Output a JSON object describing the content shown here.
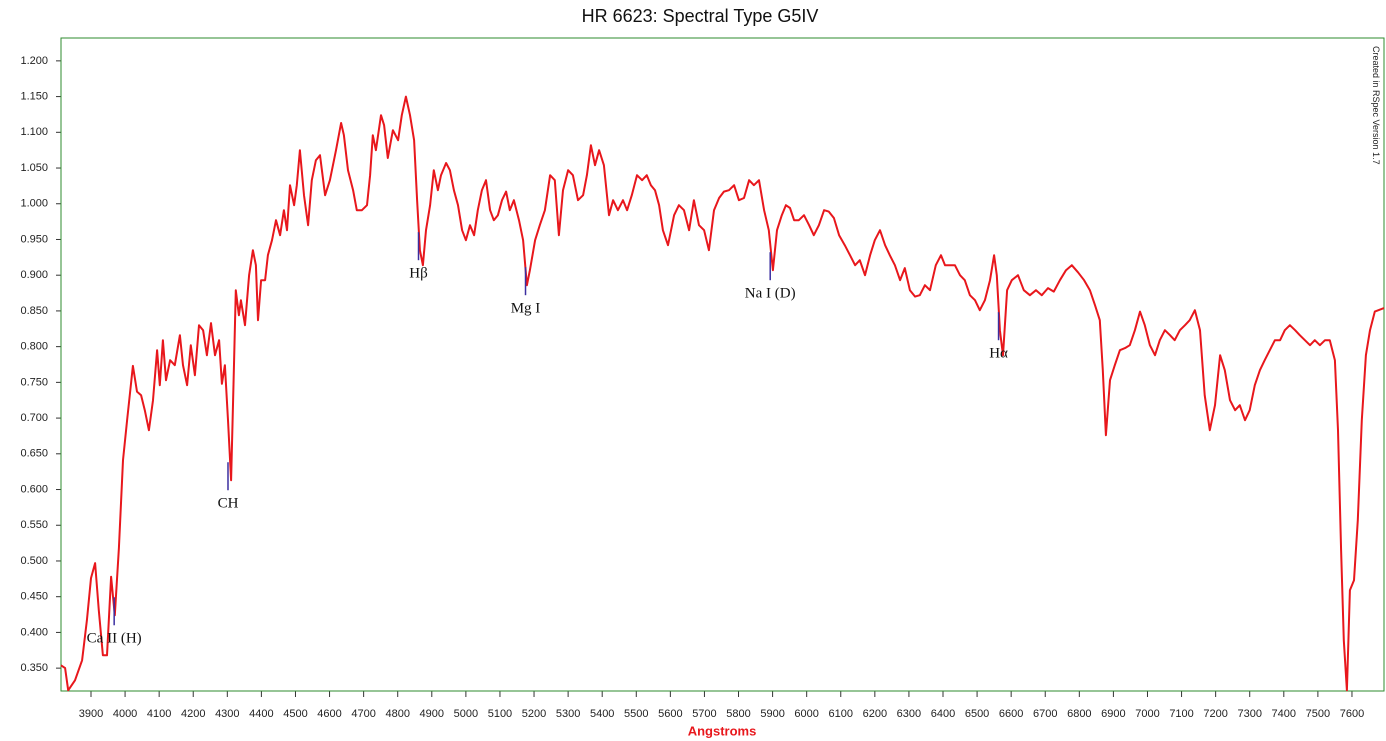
{
  "chart_data": {
    "type": "line",
    "title": "HR 6623: Spectral Type G5IV",
    "x_label": "Angstroms",
    "side_note": "Created in RSpec Version 1.7",
    "xlim": [
      3812,
      7694
    ],
    "ylim": [
      0.318,
      1.232
    ],
    "xticks": [
      3900,
      4000,
      4100,
      4200,
      4300,
      4400,
      4500,
      4600,
      4700,
      4800,
      4900,
      5000,
      5100,
      5200,
      5300,
      5400,
      5500,
      5600,
      5700,
      5800,
      5900,
      6000,
      6100,
      6200,
      6300,
      6400,
      6500,
      6600,
      6700,
      6800,
      6900,
      7000,
      7100,
      7200,
      7300,
      7400,
      7500,
      7600
    ],
    "yticks": [
      {
        "value": 0.35,
        "label": "0.350"
      },
      {
        "value": 0.4,
        "label": "0.400"
      },
      {
        "value": 0.45,
        "label": "0.450"
      },
      {
        "value": 0.5,
        "label": "0.500"
      },
      {
        "value": 0.55,
        "label": "0.550"
      },
      {
        "value": 0.6,
        "label": "0.600"
      },
      {
        "value": 0.65,
        "label": "0.650"
      },
      {
        "value": 0.7,
        "label": "0.700"
      },
      {
        "value": 0.75,
        "label": "0.750"
      },
      {
        "value": 0.8,
        "label": "0.800"
      },
      {
        "value": 0.85,
        "label": "0.850"
      },
      {
        "value": 0.9,
        "label": "0.900"
      },
      {
        "value": 0.95,
        "label": "0.950"
      },
      {
        "value": 1.0,
        "label": "1.000"
      },
      {
        "value": 1.05,
        "label": "1.050"
      },
      {
        "value": 1.1,
        "label": "1.100"
      },
      {
        "value": 1.15,
        "label": "1.150"
      },
      {
        "value": 1.2,
        "label": "1.200"
      }
    ],
    "frame_color": "#2e8b2e",
    "marker_color": "#3b2fa0",
    "annotations": [
      {
        "text": "Ca II (H)",
        "x": 3968
      },
      {
        "text": "CH",
        "x": 4302
      },
      {
        "text": "Hβ",
        "x": 4861
      },
      {
        "text": "Mg I",
        "x": 5175
      },
      {
        "text": "Na I (D)",
        "x": 5893
      },
      {
        "text": "Hα",
        "x": 6563
      }
    ],
    "x": [
      3812,
      3824,
      3833,
      3853,
      3874,
      3888,
      3900,
      3912,
      3923,
      3935,
      3947,
      3959,
      3970,
      3982,
      3994,
      4006,
      4023,
      4035,
      4047,
      4058,
      4070,
      4082,
      4094,
      4102,
      4111,
      4120,
      4132,
      4146,
      4161,
      4170,
      4182,
      4193,
      4205,
      4217,
      4229,
      4240,
      4252,
      4264,
      4276,
      4284,
      4293,
      4302,
      4311,
      4320,
      4325,
      4334,
      4340,
      4352,
      4364,
      4375,
      4384,
      4390,
      4399,
      4411,
      4419,
      4431,
      4443,
      4455,
      4466,
      4475,
      4484,
      4496,
      4504,
      4513,
      4525,
      4537,
      4548,
      4560,
      4572,
      4587,
      4601,
      4619,
      4634,
      4642,
      4654,
      4669,
      4680,
      4695,
      4710,
      4719,
      4727,
      4736,
      4751,
      4760,
      4771,
      4786,
      4801,
      4812,
      4824,
      4836,
      4848,
      4857,
      4865,
      4874,
      4883,
      4895,
      4906,
      4918,
      4927,
      4942,
      4953,
      4965,
      4977,
      4989,
      5000,
      5012,
      5024,
      5035,
      5047,
      5059,
      5071,
      5082,
      5094,
      5106,
      5118,
      5129,
      5141,
      5156,
      5168,
      5179,
      5188,
      5203,
      5217,
      5232,
      5247,
      5261,
      5273,
      5285,
      5300,
      5314,
      5329,
      5344,
      5355,
      5367,
      5379,
      5391,
      5405,
      5420,
      5432,
      5446,
      5461,
      5473,
      5487,
      5502,
      5517,
      5531,
      5543,
      5555,
      5567,
      5578,
      5593,
      5611,
      5625,
      5640,
      5655,
      5669,
      5684,
      5699,
      5713,
      5728,
      5743,
      5757,
      5772,
      5787,
      5801,
      5816,
      5831,
      5845,
      5860,
      5875,
      5889,
      5901,
      5913,
      5927,
      5939,
      5951,
      5963,
      5977,
      5992,
      6007,
      6021,
      6036,
      6051,
      6065,
      6080,
      6095,
      6112,
      6127,
      6142,
      6156,
      6171,
      6186,
      6200,
      6215,
      6230,
      6244,
      6259,
      6274,
      6288,
      6303,
      6318,
      6332,
      6347,
      6362,
      6379,
      6394,
      6406,
      6420,
      6435,
      6450,
      6464,
      6479,
      6494,
      6508,
      6523,
      6538,
      6550,
      6558,
      6567,
      6576,
      6588,
      6602,
      6620,
      6637,
      6655,
      6673,
      6690,
      6708,
      6725,
      6743,
      6761,
      6778,
      6796,
      6814,
      6831,
      6846,
      6860,
      6869,
      6878,
      6890,
      6904,
      6919,
      6934,
      6948,
      6963,
      6978,
      6992,
      7007,
      7022,
      7036,
      7051,
      7066,
      7080,
      7095,
      7110,
      7124,
      7139,
      7154,
      7168,
      7183,
      7198,
      7213,
      7227,
      7242,
      7257,
      7271,
      7286,
      7300,
      7315,
      7330,
      7344,
      7359,
      7374,
      7389,
      7403,
      7418,
      7433,
      7447,
      7462,
      7477,
      7491,
      7506,
      7521,
      7535,
      7550,
      7559,
      7568,
      7576,
      7585,
      7594,
      7606,
      7617,
      7629,
      7641,
      7653,
      7667,
      7694
    ],
    "series": [
      {
        "name": "HR 6623",
        "color": "#e8171c",
        "values": [
          0.354,
          0.35,
          0.319,
          0.333,
          0.361,
          0.417,
          0.476,
          0.497,
          0.431,
          0.368,
          0.368,
          0.478,
          0.424,
          0.518,
          0.641,
          0.697,
          0.773,
          0.737,
          0.732,
          0.711,
          0.683,
          0.725,
          0.795,
          0.746,
          0.809,
          0.753,
          0.781,
          0.774,
          0.816,
          0.774,
          0.746,
          0.802,
          0.76,
          0.83,
          0.823,
          0.788,
          0.833,
          0.788,
          0.809,
          0.748,
          0.774,
          0.697,
          0.613,
          0.781,
          0.879,
          0.844,
          0.865,
          0.83,
          0.9,
          0.935,
          0.914,
          0.837,
          0.893,
          0.893,
          0.928,
          0.949,
          0.977,
          0.956,
          0.991,
          0.963,
          1.026,
          0.998,
          1.026,
          1.075,
          1.012,
          0.97,
          1.033,
          1.061,
          1.068,
          1.012,
          1.033,
          1.075,
          1.113,
          1.096,
          1.047,
          1.019,
          0.991,
          0.991,
          0.998,
          1.04,
          1.096,
          1.075,
          1.124,
          1.11,
          1.064,
          1.103,
          1.089,
          1.124,
          1.15,
          1.124,
          1.089,
          1.005,
          0.935,
          0.914,
          0.963,
          0.998,
          1.047,
          1.019,
          1.04,
          1.057,
          1.047,
          1.019,
          0.998,
          0.963,
          0.949,
          0.97,
          0.956,
          0.991,
          1.019,
          1.033,
          0.991,
          0.977,
          0.984,
          1.005,
          1.017,
          0.991,
          1.005,
          0.977,
          0.949,
          0.886,
          0.907,
          0.949,
          0.97,
          0.991,
          1.04,
          1.033,
          0.956,
          1.019,
          1.047,
          1.04,
          1.005,
          1.012,
          1.04,
          1.082,
          1.054,
          1.075,
          1.054,
          0.984,
          1.005,
          0.991,
          1.005,
          0.991,
          1.012,
          1.04,
          1.033,
          1.04,
          1.026,
          1.019,
          0.998,
          0.963,
          0.942,
          0.984,
          0.998,
          0.991,
          0.963,
          1.005,
          0.97,
          0.963,
          0.935,
          0.991,
          1.008,
          1.017,
          1.019,
          1.026,
          1.005,
          1.008,
          1.033,
          1.026,
          1.033,
          0.991,
          0.963,
          0.907,
          0.963,
          0.984,
          0.998,
          0.994,
          0.977,
          0.977,
          0.984,
          0.97,
          0.956,
          0.97,
          0.991,
          0.989,
          0.98,
          0.956,
          0.942,
          0.928,
          0.914,
          0.921,
          0.9,
          0.928,
          0.949,
          0.963,
          0.942,
          0.928,
          0.914,
          0.893,
          0.91,
          0.879,
          0.87,
          0.872,
          0.886,
          0.879,
          0.914,
          0.928,
          0.914,
          0.914,
          0.914,
          0.9,
          0.893,
          0.872,
          0.865,
          0.851,
          0.865,
          0.893,
          0.928,
          0.9,
          0.823,
          0.788,
          0.879,
          0.893,
          0.9,
          0.879,
          0.872,
          0.879,
          0.872,
          0.882,
          0.877,
          0.893,
          0.907,
          0.914,
          0.904,
          0.893,
          0.879,
          0.858,
          0.837,
          0.767,
          0.676,
          0.753,
          0.774,
          0.795,
          0.798,
          0.802,
          0.823,
          0.849,
          0.83,
          0.802,
          0.788,
          0.809,
          0.823,
          0.816,
          0.809,
          0.823,
          0.83,
          0.837,
          0.851,
          0.823,
          0.732,
          0.683,
          0.718,
          0.788,
          0.767,
          0.725,
          0.711,
          0.718,
          0.697,
          0.711,
          0.746,
          0.767,
          0.781,
          0.795,
          0.809,
          0.809,
          0.823,
          0.83,
          0.823,
          0.816,
          0.809,
          0.802,
          0.809,
          0.802,
          0.809,
          0.809,
          0.781,
          0.683,
          0.515,
          0.389,
          0.319,
          0.459,
          0.473,
          0.557,
          0.697,
          0.788,
          0.823,
          0.849,
          0.854
        ]
      }
    ]
  }
}
